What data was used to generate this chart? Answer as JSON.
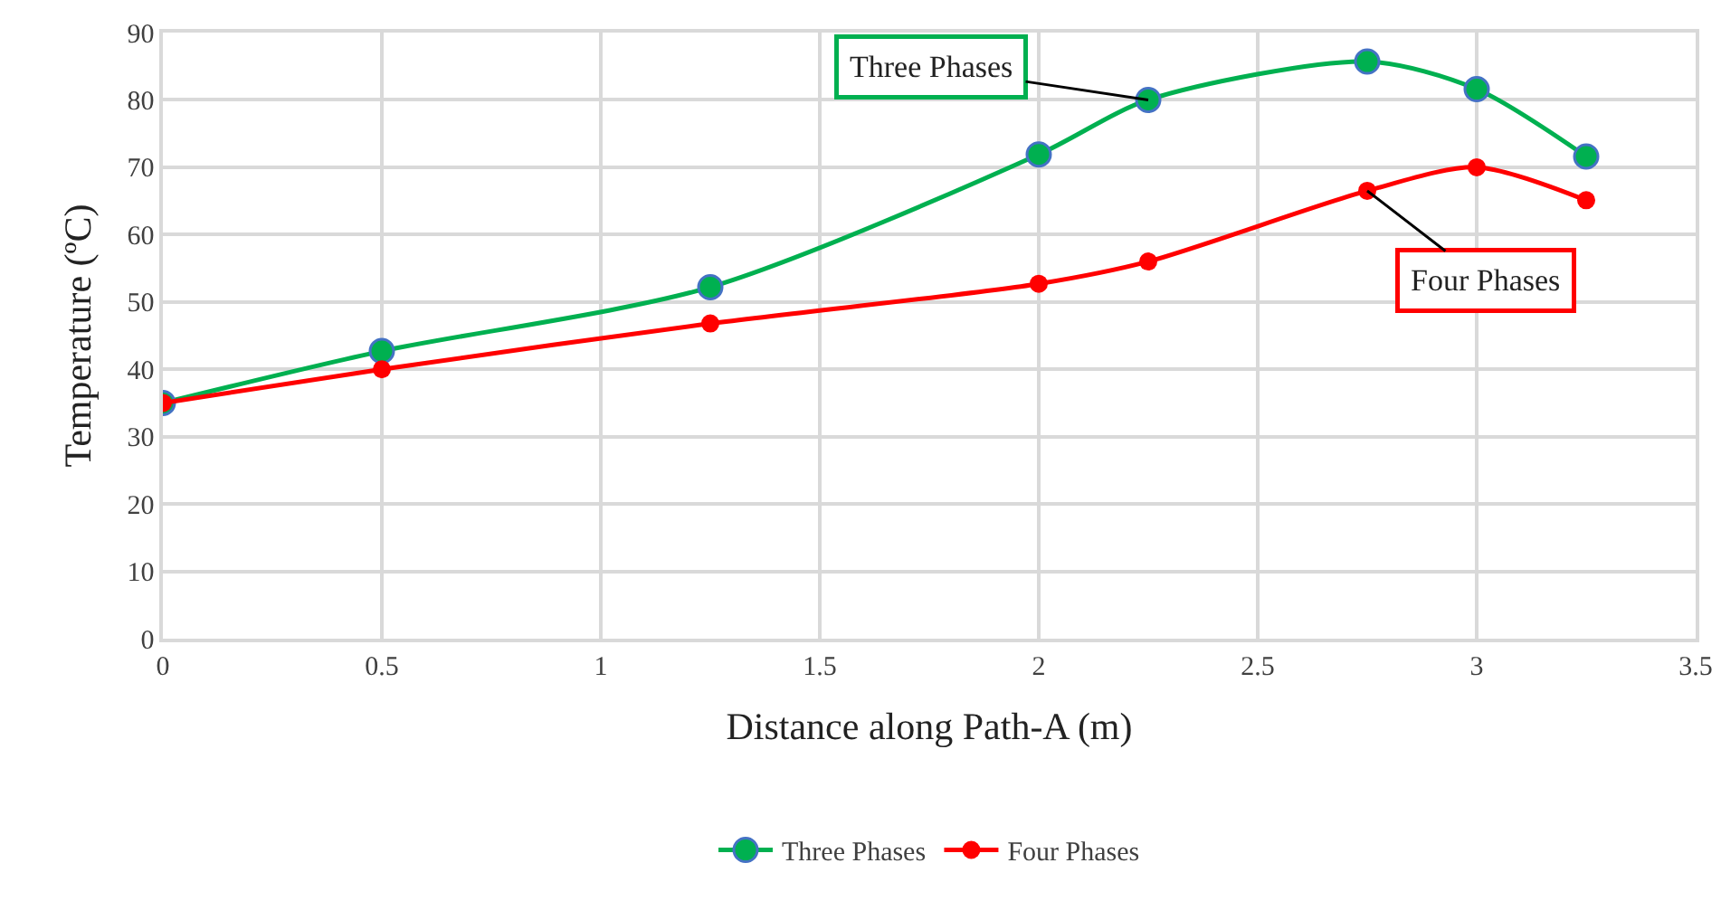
{
  "chart_data": {
    "type": "line",
    "xlabel": "Distance along Path-A (m)",
    "ylabel": "Temperature (ºC)",
    "x": [
      0,
      0.5,
      1.25,
      2,
      2.25,
      2.75,
      3,
      3.25
    ],
    "series": [
      {
        "name": "Three Phases",
        "color": "#00b050",
        "values": [
          35,
          42.7,
          52.2,
          71.9,
          80,
          85.7,
          81.6,
          71.6
        ]
      },
      {
        "name": "Four Phases",
        "color": "#ff0000",
        "values": [
          35,
          40,
          46.8,
          52.7,
          56,
          66.5,
          70,
          65.1
        ]
      }
    ],
    "annotations": [
      {
        "text": "Three Phases",
        "x": 2.25,
        "y": 80
      },
      {
        "text": "Four Phases",
        "x": 2.75,
        "y": 66.5
      }
    ],
    "xlim": [
      0,
      3.5
    ],
    "xticks": [
      0,
      0.5,
      1,
      1.5,
      2,
      2.5,
      3,
      3.5
    ],
    "ylim": [
      0,
      90
    ],
    "yticks": [
      0,
      10,
      20,
      30,
      40,
      50,
      60,
      70,
      80,
      90
    ],
    "grid": true,
    "legend": "bottom",
    "marker": "circle",
    "line_style": "solid"
  }
}
